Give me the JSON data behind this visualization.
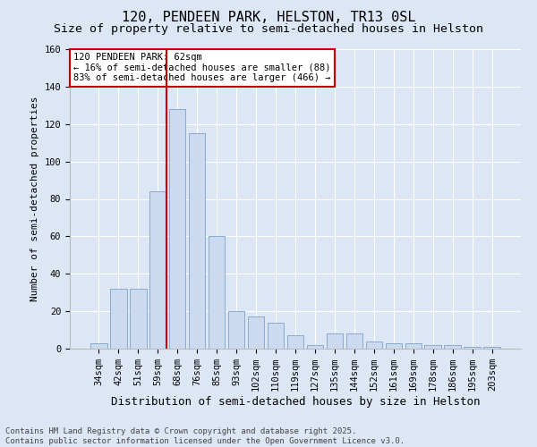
{
  "title": "120, PENDEEN PARK, HELSTON, TR13 0SL",
  "subtitle": "Size of property relative to semi-detached houses in Helston",
  "xlabel": "Distribution of semi-detached houses by size in Helston",
  "ylabel": "Number of semi-detached properties",
  "categories": [
    "34sqm",
    "42sqm",
    "51sqm",
    "59sqm",
    "68sqm",
    "76sqm",
    "85sqm",
    "93sqm",
    "102sqm",
    "110sqm",
    "119sqm",
    "127sqm",
    "135sqm",
    "144sqm",
    "152sqm",
    "161sqm",
    "169sqm",
    "178sqm",
    "186sqm",
    "195sqm",
    "203sqm"
  ],
  "values": [
    3,
    32,
    32,
    84,
    128,
    115,
    60,
    20,
    17,
    14,
    7,
    2,
    8,
    8,
    4,
    3,
    3,
    2,
    2,
    1,
    1
  ],
  "bar_color": "#ccdaf0",
  "bar_edge_color": "#88aacc",
  "vline_x_idx": 3,
  "vline_color": "#cc0000",
  "ylim": [
    0,
    160
  ],
  "yticks": [
    0,
    20,
    40,
    60,
    80,
    100,
    120,
    140,
    160
  ],
  "annotation_text": "120 PENDEEN PARK: 62sqm\n← 16% of semi-detached houses are smaller (88)\n83% of semi-detached houses are larger (466) →",
  "annotation_box_facecolor": "#ffffff",
  "annotation_box_edgecolor": "#cc0000",
  "footnote": "Contains HM Land Registry data © Crown copyright and database right 2025.\nContains public sector information licensed under the Open Government Licence v3.0.",
  "background_color": "#dce6f5",
  "plot_bg_color": "#dce6f5",
  "title_fontsize": 11,
  "subtitle_fontsize": 9.5,
  "xlabel_fontsize": 9,
  "ylabel_fontsize": 8,
  "tick_fontsize": 7.5,
  "footnote_fontsize": 6.5,
  "annotation_fontsize": 7.5
}
